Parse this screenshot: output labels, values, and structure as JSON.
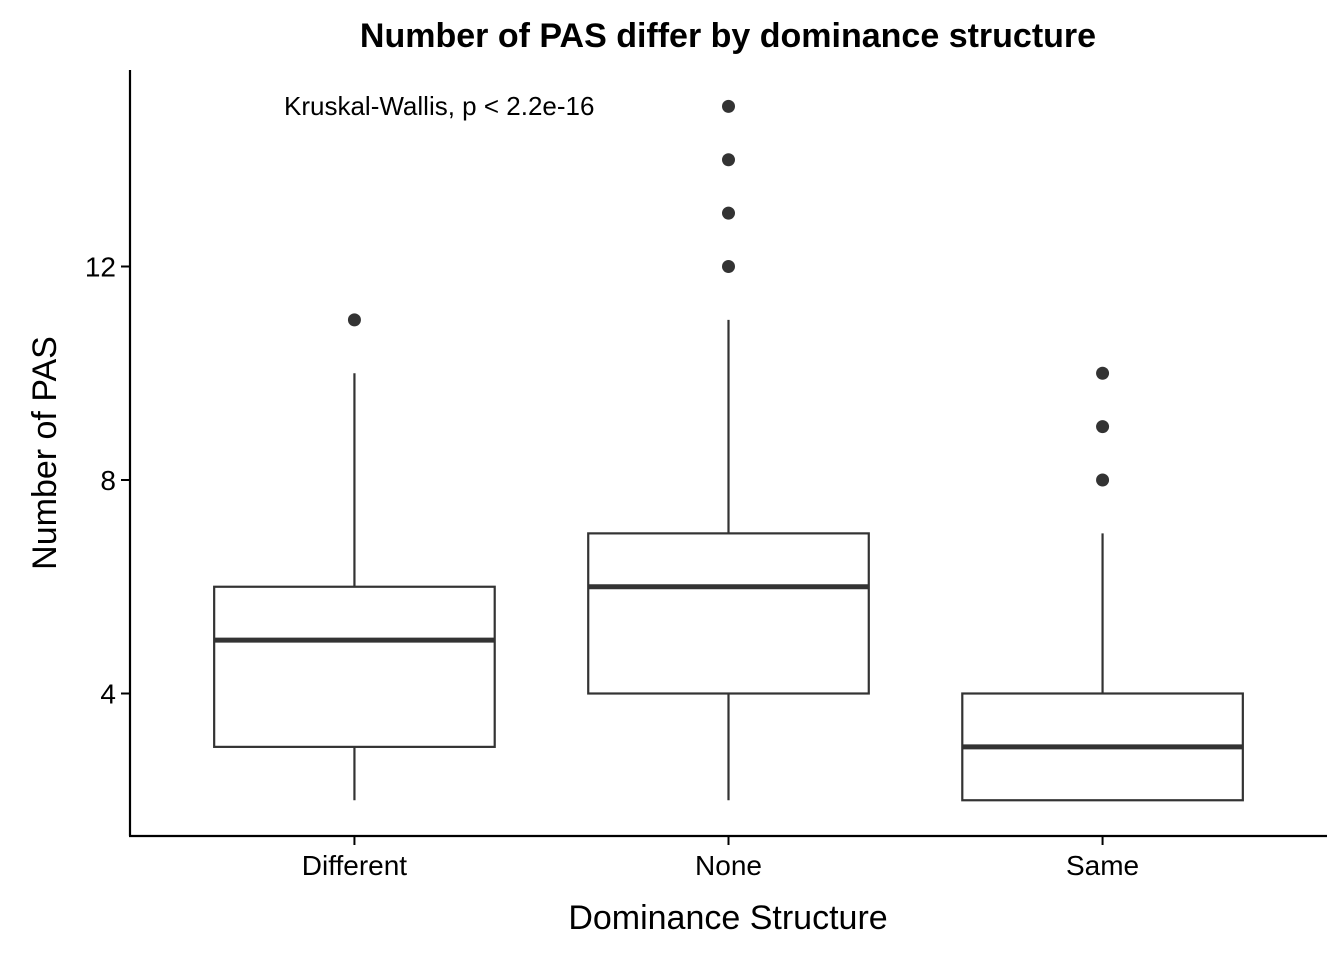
{
  "chart_data": {
    "type": "boxplot",
    "title": "Number of PAS differ by dominance structure",
    "xlabel": "Dominance Structure",
    "ylabel": "Number of PAS",
    "annotation": "Kruskal-Wallis, p < 2.2e-16",
    "ylim": [
      1.35,
      15.7
    ],
    "yticks": [
      4,
      8,
      12
    ],
    "categories": [
      "Different",
      "None",
      "Same"
    ],
    "boxes": [
      {
        "category": "Different",
        "whisker_low": 2,
        "q1": 3,
        "median": 5,
        "q3": 6,
        "whisker_high": 10,
        "outliers": [
          11
        ]
      },
      {
        "category": "None",
        "whisker_low": 2,
        "q1": 4,
        "median": 6,
        "q3": 7,
        "whisker_high": 11,
        "outliers": [
          12,
          13,
          14,
          15
        ]
      },
      {
        "category": "Same",
        "whisker_low": 2,
        "q1": 2,
        "median": 3,
        "q3": 4,
        "whisker_high": 7,
        "outliers": [
          8,
          9,
          10
        ]
      }
    ],
    "grid": false,
    "legend": "none"
  }
}
